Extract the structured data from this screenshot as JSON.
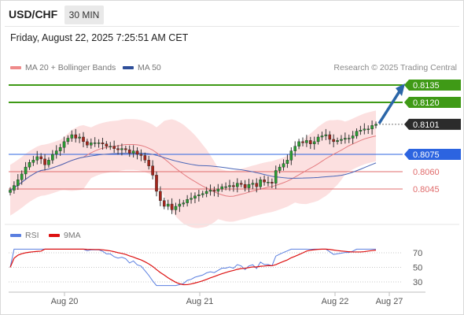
{
  "header": {
    "symbol": "USD/CHF",
    "timeframe": "30 MIN",
    "datetime": "Friday, August 22, 2025 7:25:51 AM CET"
  },
  "legend": {
    "ma20_label": "MA 20 + Bollinger Bands",
    "ma50_label": "MA 50",
    "rsi_label": "RSI",
    "rsi_ma_label": "9MA",
    "research": "Research © 2025 Trading Central"
  },
  "colors": {
    "ma20": "#e47c80",
    "bollinger_fill": "#fbdada",
    "ma50": "#4a66b8",
    "candle_up": "#2a9d32",
    "candle_down": "#a6261c",
    "green_level": "#3f9a16",
    "blue_level": "#2c64e0",
    "red_level": "#e06c6c",
    "last_price": "#2b2b2b",
    "arrow": "#2b66a8",
    "rsi": "#5a7fe0",
    "rsi_ma": "#dd1111"
  },
  "chart_data": [
    {
      "type": "candlestick",
      "x_ticks": [
        "Aug 20",
        "Aug 21",
        "Aug 22",
        "Aug 27"
      ],
      "ylim": [
        0.8024,
        0.8156
      ],
      "close": [
        0.8044,
        0.8048,
        0.8053,
        0.8058,
        0.8064,
        0.8068,
        0.807,
        0.8073,
        0.8071,
        0.8066,
        0.807,
        0.8075,
        0.8078,
        0.8081,
        0.8086,
        0.8089,
        0.8092,
        0.8089,
        0.809,
        0.8086,
        0.8083,
        0.8085,
        0.8085,
        0.8085,
        0.8084,
        0.8082,
        0.8082,
        0.808,
        0.8079,
        0.808,
        0.8079,
        0.8076,
        0.8078,
        0.8075,
        0.8074,
        0.807,
        0.8065,
        0.8057,
        0.8043,
        0.8035,
        0.803,
        0.8032,
        0.8027,
        0.803,
        0.8032,
        0.8033,
        0.8036,
        0.8037,
        0.8039,
        0.804,
        0.8041,
        0.8043,
        0.8044,
        0.8043,
        0.8045,
        0.8047,
        0.8047,
        0.8048,
        0.8047,
        0.805,
        0.8049,
        0.8046,
        0.8049,
        0.805,
        0.8047,
        0.8053,
        0.8051,
        0.8051,
        0.805,
        0.8061,
        0.8064,
        0.8067,
        0.807,
        0.8078,
        0.8082,
        0.8086,
        0.8085,
        0.8087,
        0.8084,
        0.8086,
        0.809,
        0.8091,
        0.8092,
        0.8088,
        0.8086,
        0.8087,
        0.8088,
        0.8089,
        0.8089,
        0.8091,
        0.8095,
        0.8096,
        0.8097,
        0.8097,
        0.81,
        0.8101
      ],
      "levels": [
        {
          "value": 0.8135,
          "label": "0.8135",
          "kind": "resistance"
        },
        {
          "value": 0.812,
          "label": "0.8120",
          "kind": "resistance"
        },
        {
          "value": 0.8101,
          "label": "0.8101",
          "kind": "last"
        },
        {
          "value": 0.8075,
          "label": "0.8075",
          "kind": "pivot"
        },
        {
          "value": 0.806,
          "label": "0.8060",
          "kind": "support"
        },
        {
          "value": 0.8045,
          "label": "0.8045",
          "kind": "support"
        }
      ],
      "indicators": [
        "MA 20 + Bollinger Bands",
        "MA 50"
      ],
      "arrow": {
        "from": 0.8101,
        "to": 0.8135,
        "direction": "up"
      }
    },
    {
      "type": "line",
      "name": "RSI",
      "ylim": [
        20,
        80
      ],
      "y_ticks": [
        70,
        50,
        30
      ],
      "rsi_ma_label": "9MA"
    }
  ]
}
